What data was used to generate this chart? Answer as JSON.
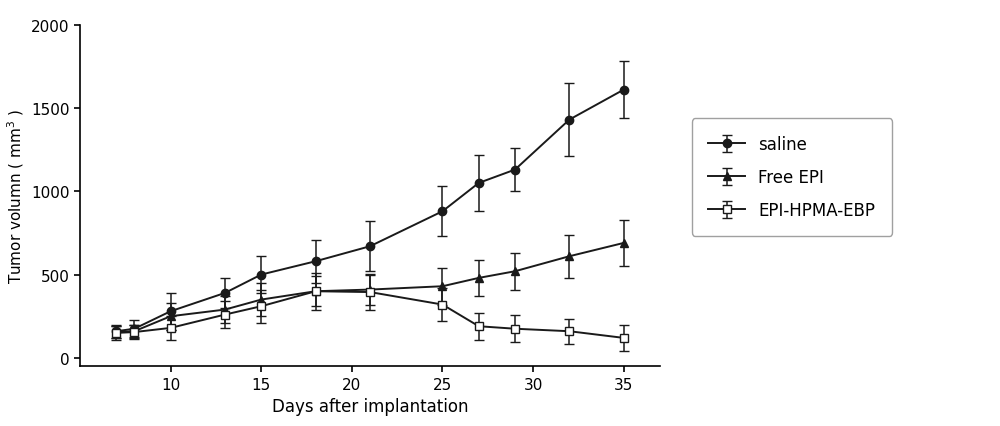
{
  "saline": {
    "x": [
      7,
      8,
      10,
      13,
      15,
      18,
      21,
      25,
      27,
      29,
      32,
      35
    ],
    "y": [
      160,
      175,
      280,
      390,
      500,
      580,
      670,
      880,
      1050,
      1130,
      1430,
      1610
    ],
    "yerr": [
      40,
      50,
      110,
      90,
      110,
      130,
      150,
      150,
      170,
      130,
      220,
      170
    ]
  },
  "free_epi": {
    "x": [
      7,
      8,
      10,
      13,
      15,
      18,
      21,
      25,
      27,
      29,
      32,
      35
    ],
    "y": [
      155,
      160,
      250,
      290,
      350,
      400,
      410,
      430,
      480,
      520,
      610,
      690
    ],
    "yerr": [
      35,
      40,
      80,
      80,
      100,
      90,
      90,
      110,
      110,
      110,
      130,
      140
    ]
  },
  "epi_hpma_ebp": {
    "x": [
      7,
      8,
      10,
      13,
      15,
      18,
      21,
      25,
      27,
      29,
      32,
      35
    ],
    "y": [
      150,
      155,
      180,
      260,
      310,
      400,
      395,
      320,
      190,
      175,
      160,
      120
    ],
    "yerr": [
      40,
      40,
      70,
      80,
      100,
      110,
      110,
      100,
      80,
      80,
      75,
      80
    ]
  },
  "xlabel": "Days after implantation",
  "ylim": [
    -50,
    2000
  ],
  "yticks": [
    0,
    500,
    1000,
    1500,
    2000
  ],
  "xticks": [
    10,
    15,
    20,
    25,
    30,
    35
  ],
  "xlim": [
    5,
    37
  ],
  "line_color": "#1a1a1a",
  "legend_labels": [
    "saline",
    "Free EPI",
    "EPI-HPMA-EBP"
  ],
  "figsize": [
    10.0,
    4.27
  ],
  "dpi": 100
}
